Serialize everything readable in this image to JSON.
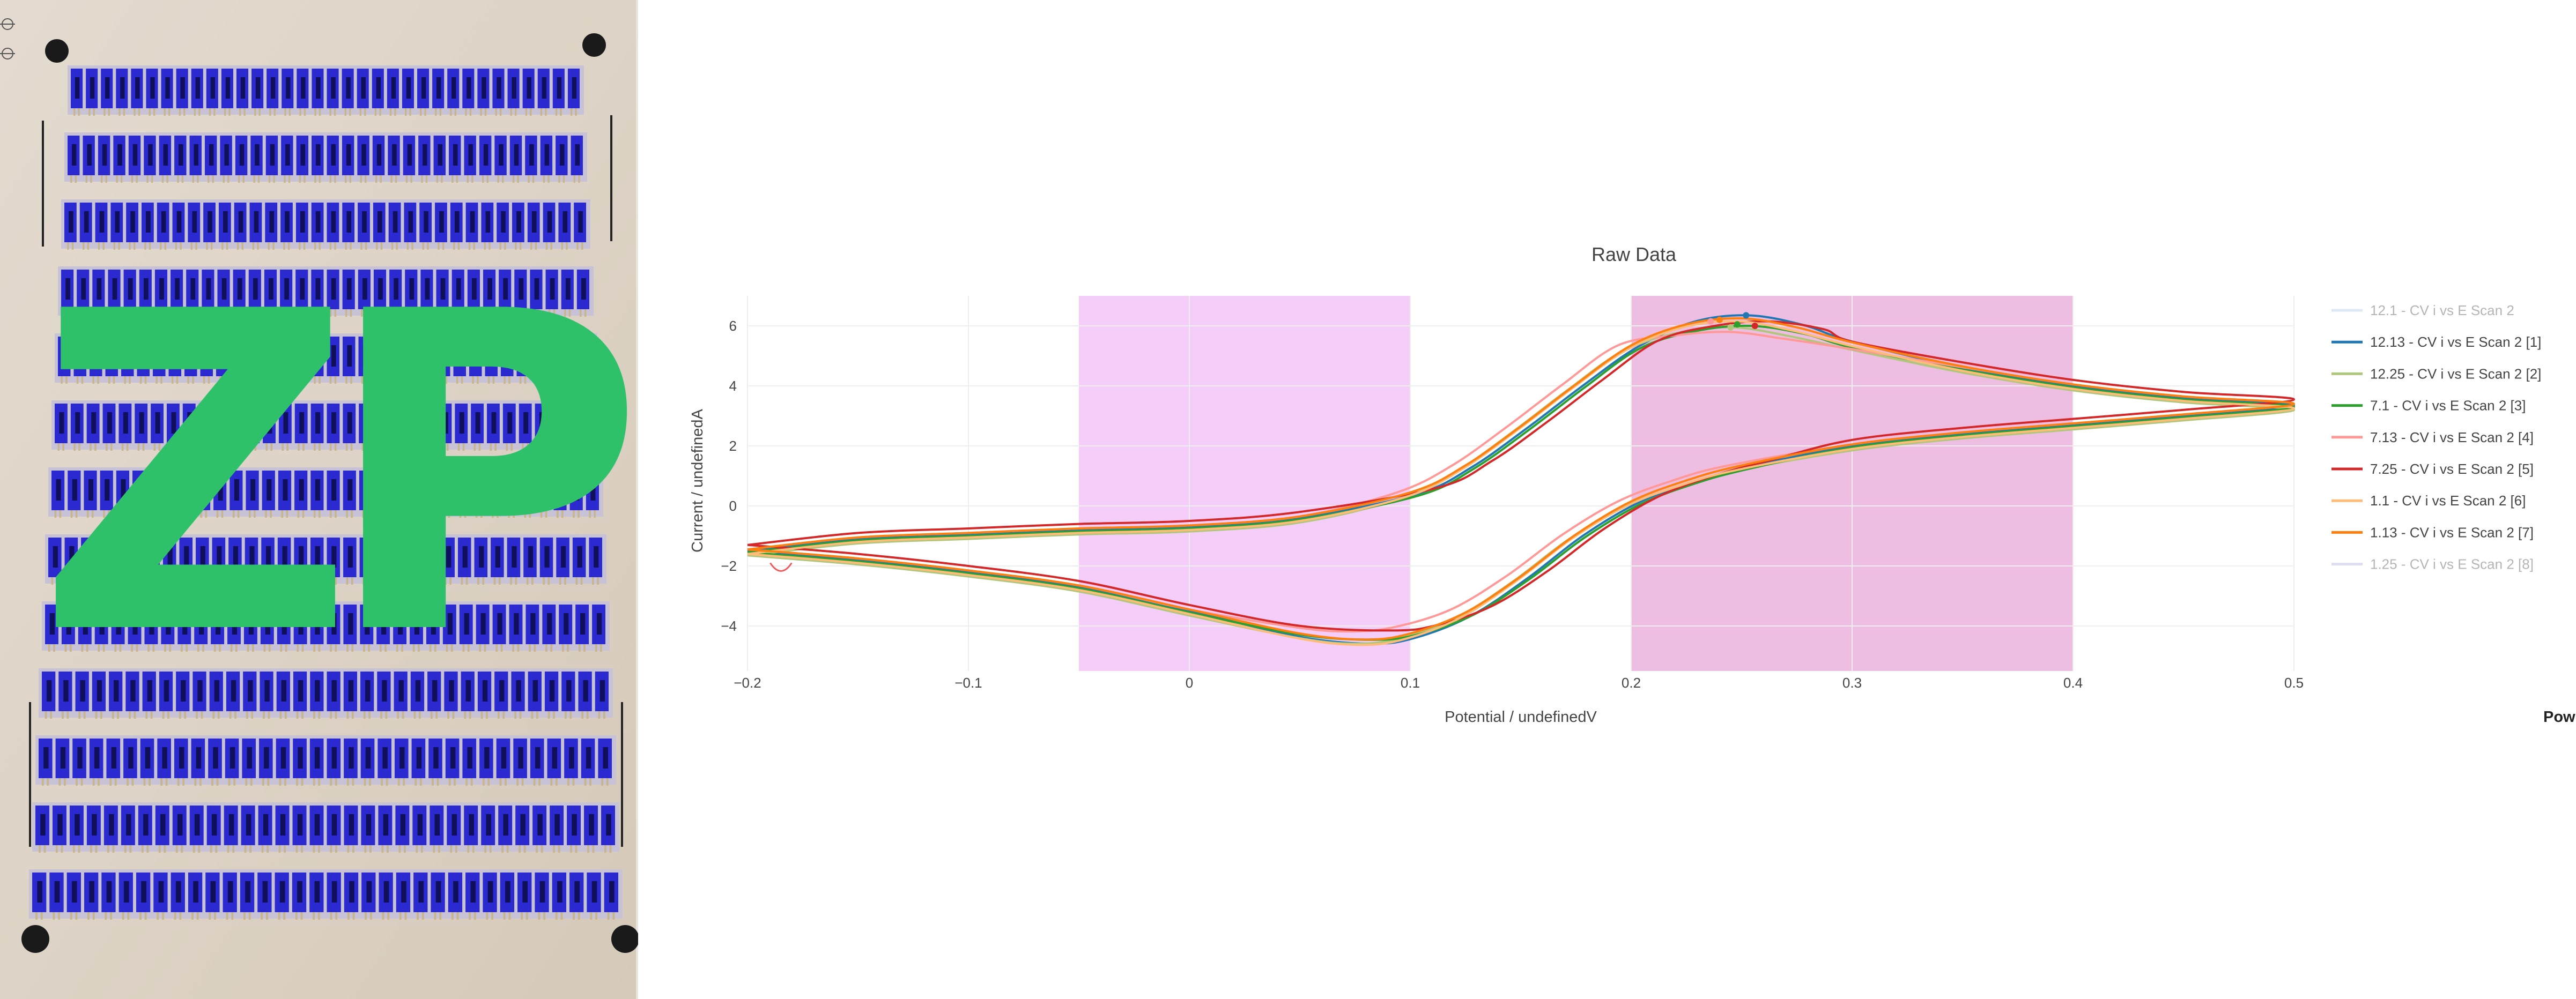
{
  "colors": {
    "background": "#ffffff",
    "plot_bg": "#ffffff",
    "gridline": "#eeeeee",
    "highlight_band_1": "#f2c6f7",
    "highlight_band_2": "#ebb3dd",
    "logo_green": "#2ec16a",
    "electrode_blue": "#2b2ad1",
    "board_tan": "#dcd2c6"
  },
  "photo": {
    "logo_text": "ZP",
    "description_icon": "electrode-sheet-photo"
  },
  "chart_data": {
    "type": "line",
    "title": "Raw Data",
    "xlabel": "Potential / undefinedV",
    "ylabel": "Current / undefinedA",
    "xlim": [
      -0.2,
      0.5
    ],
    "ylim": [
      -5.5,
      7.0
    ],
    "xticks": [
      -0.2,
      -0.1,
      0,
      0.1,
      0.2,
      0.3,
      0.4,
      0.5
    ],
    "xtick_labels": [
      "−0.2",
      "−0.1",
      "0",
      "0.1",
      "0.2",
      "0.3",
      "0.4",
      "0.5"
    ],
    "yticks": [
      -4,
      -2,
      0,
      2,
      4,
      6
    ],
    "ytick_labels": [
      "−4",
      "−2",
      "0",
      "2",
      "4",
      "6"
    ],
    "grid": true,
    "legend_position": "right",
    "shaded_regions": [
      {
        "x0": -0.05,
        "x1": 0.1
      },
      {
        "x0": 0.2,
        "x1": 0.4
      }
    ],
    "series": [
      {
        "name": "12.1 - CV i vs E Scan 2",
        "color": "#c9d9ef",
        "faded": true,
        "dy": 0,
        "ox": 0,
        "oy": 0
      },
      {
        "name": "12.13 - CV i vs E Scan 2 [1]",
        "color": "#1f77b4",
        "faded": false,
        "dy": 0.0,
        "ox": 0.003,
        "oy": 0.15
      },
      {
        "name": "12.25 - CV i vs E Scan 2 [2]",
        "color": "#aec77a",
        "faded": false,
        "dy": -0.15,
        "ox": -0.004,
        "oy": -0.1
      },
      {
        "name": "7.1 - CV i vs E Scan 2 [3]",
        "color": "#2ca02c",
        "faded": false,
        "dy": -0.05,
        "ox": 0.004,
        "oy": -0.15
      },
      {
        "name": "7.13 - CV i vs E Scan 2 [4]",
        "color": "#ff9896",
        "faded": false,
        "dy": 0.05,
        "ox": -0.006,
        "oy": -0.45
      },
      {
        "name": "7.25 - CV i vs E Scan 2 [5]",
        "color": "#d62728",
        "faded": false,
        "dy": 0.2,
        "ox": 0.012,
        "oy": -0.25
      },
      {
        "name": "1.1 - CV i vs E Scan 2 [6]",
        "color": "#ffbb78",
        "faded": false,
        "dy": -0.1,
        "ox": -0.002,
        "oy": 0.05
      },
      {
        "name": "1.13 - CV i vs E Scan 2 [7]",
        "color": "#ff7f0e",
        "faded": false,
        "dy": 0.05,
        "ox": 0.0,
        "oy": 0.0
      },
      {
        "name": "1.25 - CV i vs E Scan 2 [8]",
        "color": "#c5c8e4",
        "faded": true,
        "dy": 0,
        "ox": 0,
        "oy": 0
      }
    ],
    "base_curve": {
      "x": [
        -0.2,
        -0.15,
        -0.1,
        -0.05,
        0.0,
        0.05,
        0.1,
        0.125,
        0.15,
        0.175,
        0.2,
        0.225,
        0.25,
        0.275,
        0.3,
        0.35,
        0.4,
        0.45,
        0.5,
        0.45,
        0.4,
        0.35,
        0.3,
        0.25,
        0.225,
        0.2,
        0.175,
        0.15,
        0.125,
        0.1,
        0.08,
        0.05,
        0.0,
        -0.05,
        -0.1,
        -0.15,
        -0.2
      ],
      "y": [
        -1.5,
        -1.1,
        -0.95,
        -0.8,
        -0.7,
        -0.4,
        0.4,
        1.3,
        2.6,
        4.0,
        5.3,
        6.0,
        6.2,
        5.9,
        5.4,
        4.6,
        4.0,
        3.6,
        3.35,
        3.0,
        2.7,
        2.4,
        2.0,
        1.3,
        0.8,
        0.1,
        -1.0,
        -2.4,
        -3.6,
        -4.3,
        -4.5,
        -4.3,
        -3.5,
        -2.7,
        -2.2,
        -1.8,
        -1.5
      ]
    },
    "peak_markers": [
      {
        "series": 1,
        "x": 0.252,
        "y": 6.35
      },
      {
        "series": 3,
        "x": 0.248,
        "y": 6.05
      },
      {
        "series": 4,
        "x": 0.236,
        "y": 6.15
      },
      {
        "series": 5,
        "x": 0.256,
        "y": 6.0
      },
      {
        "series": 7,
        "x": 0.24,
        "y": 6.2
      },
      {
        "series": 2,
        "x": 0.245,
        "y": 5.95
      }
    ]
  },
  "footer": {
    "cut_text": "Pow"
  }
}
